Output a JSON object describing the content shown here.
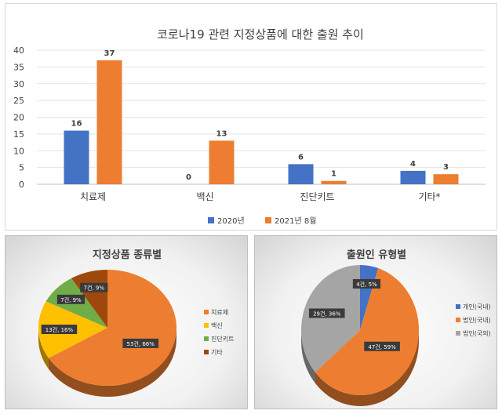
{
  "chart_data": [
    {
      "type": "bar",
      "title": "코로나19 관련 지정상품에 대한 출원 추이",
      "categories": [
        "치료제",
        "백신",
        "진단키트",
        "기타*"
      ],
      "series": [
        {
          "name": "2020년",
          "values": [
            16,
            0,
            6,
            4
          ],
          "color": "#4472c4"
        },
        {
          "name": "2021년 8월",
          "values": [
            37,
            13,
            1,
            3
          ],
          "color": "#ed7d31"
        }
      ],
      "ylim": [
        0,
        40
      ],
      "yticks": [
        0,
        5,
        10,
        15,
        20,
        25,
        30,
        35,
        40
      ],
      "grid": true,
      "legend": "bottom"
    },
    {
      "type": "pie",
      "title": "지정상품 종류별",
      "labels": [
        "치료제",
        "백신",
        "진단키트",
        "기타"
      ],
      "values": [
        53,
        13,
        7,
        7
      ],
      "data_labels": [
        "53건, 66%",
        "13건, 16%",
        "7건, 9%",
        "7건, 9%"
      ],
      "colors": [
        "#ed7d31",
        "#ffc000",
        "#70ad47",
        "#9e480e"
      ],
      "legend": "right"
    },
    {
      "type": "pie",
      "title": "출원인 유형별",
      "labels": [
        "개인(국내)",
        "법인(국내)",
        "법인(국외)"
      ],
      "values": [
        4,
        47,
        29
      ],
      "data_labels": [
        "4건, 5%",
        "47건, 59%",
        "29건, 36%"
      ],
      "colors": [
        "#4472c4",
        "#ed7d31",
        "#a5a5a5"
      ],
      "legend": "right"
    }
  ]
}
